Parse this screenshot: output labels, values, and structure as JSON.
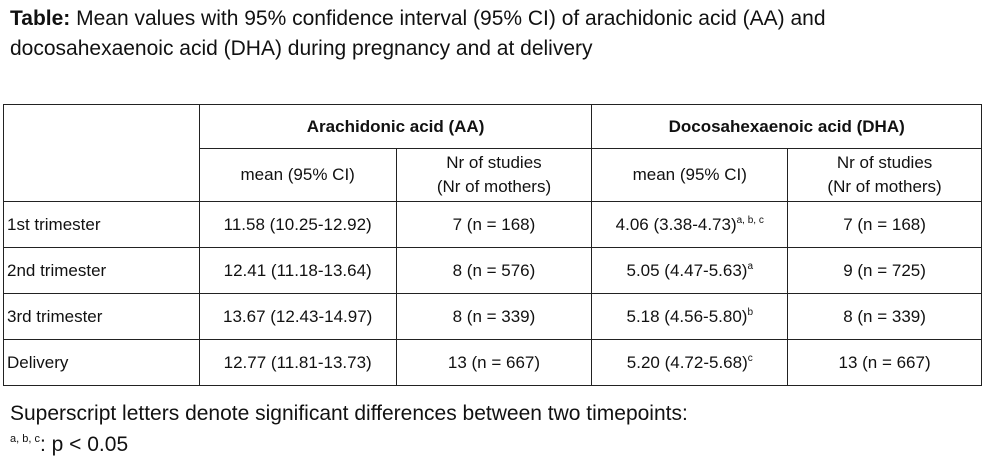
{
  "caption": {
    "lead": "Table:",
    "text": " Mean values with 95% confidence interval (95% CI) of arachidonic acid (AA) and docosahexaenoic acid (DHA) during pregnancy and at delivery"
  },
  "table": {
    "groups": [
      "Arachidonic acid (AA)",
      "Docosahexaenoic acid (DHA)"
    ],
    "subheaders": {
      "mean": "mean (95% CI)",
      "studies_line1": "Nr of studies",
      "studies_line2": "(Nr of mothers)"
    },
    "rows": [
      {
        "label": "1st trimester",
        "aa_mean": "11.58 (10.25-12.92)",
        "aa_n": "7 (n = 168)",
        "dha_mean": "4.06 (3.38-4.73)",
        "dha_sup": "a, b, c",
        "dha_n": "7 (n = 168)"
      },
      {
        "label": "2nd trimester",
        "aa_mean": "12.41 (11.18-13.64)",
        "aa_n": "8 (n = 576)",
        "dha_mean": "5.05 (4.47-5.63)",
        "dha_sup": "a",
        "dha_n": "9 (n = 725)"
      },
      {
        "label": "3rd trimester",
        "aa_mean": "13.67 (12.43-14.97)",
        "aa_n": "8 (n = 339)",
        "dha_mean": "5.18 (4.56-5.80)",
        "dha_sup": "b",
        "dha_n": "8 (n = 339)"
      },
      {
        "label": "Delivery",
        "aa_mean": "12.77 (11.81-13.73)",
        "aa_n": "13 (n = 667)",
        "dha_mean": "5.20 (4.72-5.68)",
        "dha_sup": "c",
        "dha_n": "13 (n = 667)"
      }
    ]
  },
  "footnote": {
    "line1": "Superscript letters denote significant differences between two timepoints:",
    "sup": "a, b, c",
    "line2": ": p < 0.05"
  }
}
